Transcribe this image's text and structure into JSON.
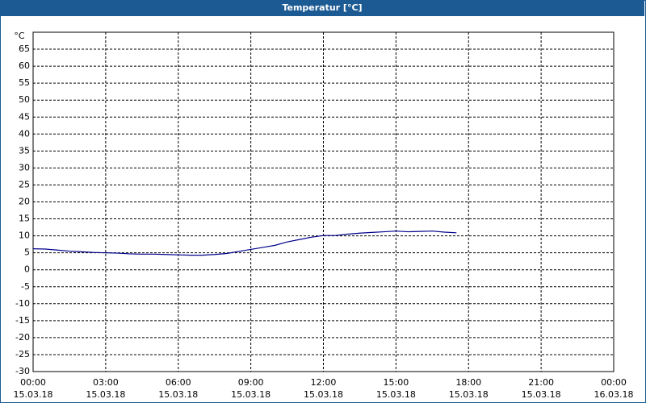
{
  "chart_data": {
    "type": "line",
    "title": "Temperatur [°C]",
    "y_unit": "°C",
    "x": [
      0,
      0.5,
      1,
      1.5,
      2,
      2.5,
      3,
      3.5,
      4,
      4.5,
      5,
      5.5,
      6,
      6.5,
      7,
      7.5,
      8,
      8.5,
      9,
      9.5,
      10,
      10.5,
      11,
      11.5,
      12,
      12.5,
      13,
      13.5,
      14,
      14.5,
      15,
      15.5,
      16,
      16.5,
      17,
      17.5
    ],
    "series": [
      {
        "name": "Temperatur",
        "color": "#00008b",
        "values": [
          6.2,
          6.1,
          5.8,
          5.5,
          5.3,
          5.1,
          5.0,
          4.9,
          4.7,
          4.6,
          4.6,
          4.5,
          4.4,
          4.3,
          4.3,
          4.5,
          4.8,
          5.4,
          6.0,
          6.6,
          7.2,
          8.2,
          8.9,
          9.6,
          10.1,
          10.1,
          10.5,
          10.8,
          11.0,
          11.2,
          11.4,
          11.2,
          11.3,
          11.4,
          11.1,
          10.9
        ]
      }
    ],
    "xlim": [
      0,
      24
    ],
    "xticks": [
      {
        "value": 0,
        "label": "00:00"
      },
      {
        "value": 3,
        "label": "03:00"
      },
      {
        "value": 6,
        "label": "06:00"
      },
      {
        "value": 9,
        "label": "09:00"
      },
      {
        "value": 12,
        "label": "12:00"
      },
      {
        "value": 15,
        "label": "15:00"
      },
      {
        "value": 18,
        "label": "18:00"
      },
      {
        "value": 21,
        "label": "21:00"
      },
      {
        "value": 24,
        "label": "00:00"
      }
    ],
    "xtick_dates": [
      "15.03.18",
      "15.03.18",
      "15.03.18",
      "15.03.18",
      "15.03.18",
      "15.03.18",
      "15.03.18",
      "15.03.18",
      "16.03.18"
    ],
    "ylim": [
      -30,
      70
    ],
    "yticks": [
      -30,
      -25,
      -20,
      -15,
      -10,
      -5,
      0,
      5,
      10,
      15,
      20,
      25,
      30,
      35,
      40,
      45,
      50,
      55,
      60,
      65
    ],
    "grid": true
  }
}
